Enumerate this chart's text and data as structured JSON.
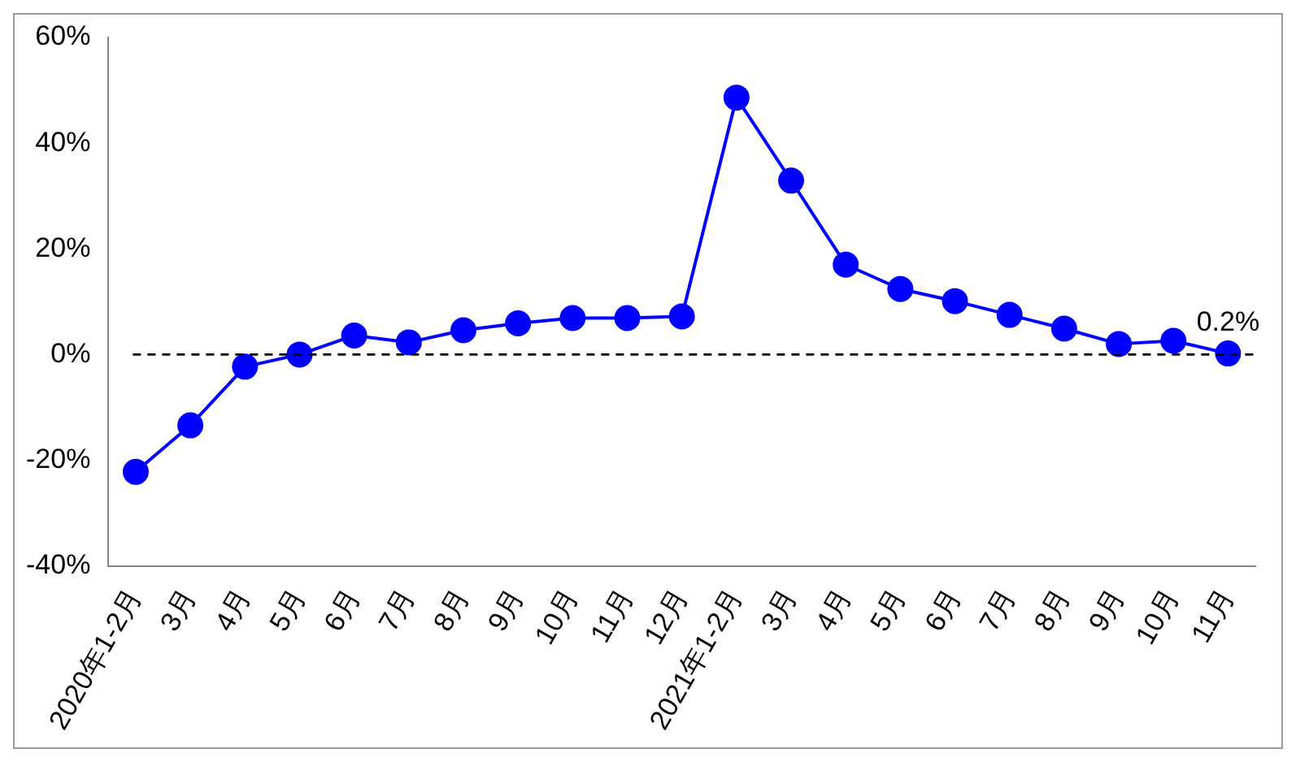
{
  "chart_data": {
    "type": "line",
    "categories": [
      "2020年1-2月",
      "3月",
      "4月",
      "5月",
      "6月",
      "7月",
      "8月",
      "9月",
      "10月",
      "11月",
      "12月",
      "2021年1-2月",
      "3月",
      "4月",
      "5月",
      "6月",
      "7月",
      "8月",
      "9月",
      "10月",
      "11月"
    ],
    "series": [
      {
        "color": "#0000ff",
        "values": [
          -22.2,
          -13.4,
          -2.3,
          0,
          3.6,
          2.3,
          4.6,
          5.9,
          6.9,
          6.9,
          7.2,
          48.6,
          32.9,
          17.0,
          12.4,
          10.1,
          7.5,
          4.9,
          2.0,
          2.6,
          0.2
        ],
        "value_labels": [
          null,
          null,
          null,
          null,
          null,
          null,
          null,
          null,
          null,
          null,
          null,
          null,
          null,
          null,
          null,
          null,
          null,
          null,
          null,
          null,
          "0.2%"
        ]
      }
    ],
    "ylim": [
      -40,
      60
    ],
    "yticks": [
      {
        "value": -40,
        "label": "-40%"
      },
      {
        "value": -20,
        "label": "-20%"
      },
      {
        "value": 0,
        "label": "0%"
      },
      {
        "value": 20,
        "label": "20%"
      },
      {
        "value": 40,
        "label": "40%"
      },
      {
        "value": 60,
        "label": "60%"
      }
    ],
    "ref_lines": [
      {
        "axis": "y",
        "value": 0,
        "color": "#000000",
        "line_style": "dashed"
      }
    ],
    "marker": "circle",
    "line_style": "solid",
    "grid": false,
    "legend": false
  }
}
